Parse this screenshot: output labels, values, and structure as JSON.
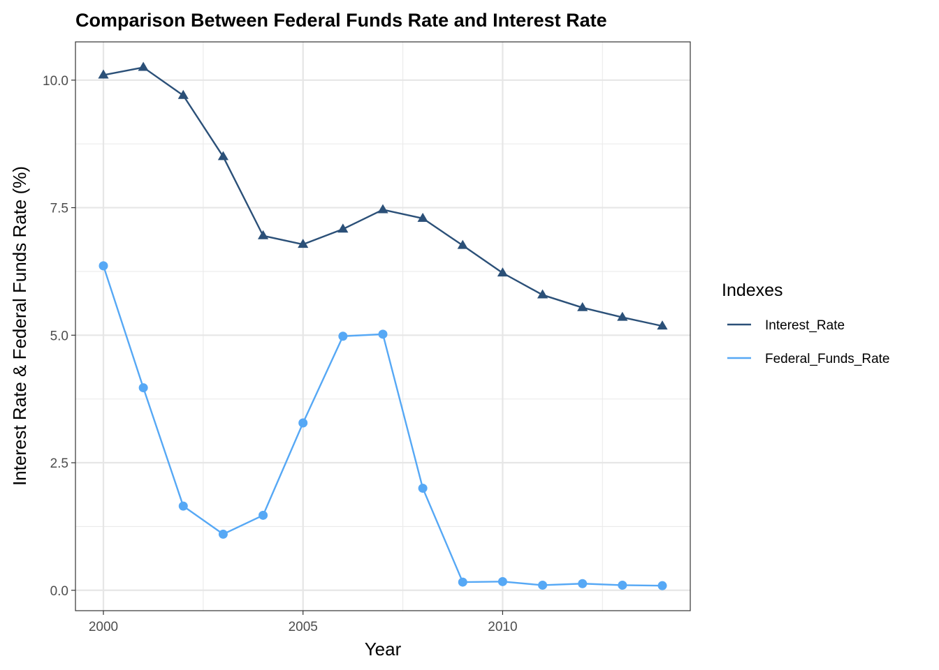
{
  "chart_data": {
    "type": "line",
    "title": "Comparison Between Federal Funds Rate and Interest Rate",
    "xlabel": "Year",
    "ylabel": "Interest Rate & Federal Funds Rate (%)",
    "x": [
      2000,
      2001,
      2002,
      2003,
      2004,
      2005,
      2006,
      2007,
      2008,
      2009,
      2010,
      2011,
      2012,
      2013,
      2014
    ],
    "xlim": [
      1999.3,
      2014.7
    ],
    "ylim": [
      -0.4,
      10.75
    ],
    "x_ticks": [
      2000,
      2005,
      2010
    ],
    "x_tick_labels": [
      "2000",
      "2005",
      "2010"
    ],
    "y_ticks": [
      0,
      2.5,
      5,
      7.5,
      10
    ],
    "y_tick_labels": [
      "0.0",
      "2.5",
      "5.0",
      "7.5",
      "10.0"
    ],
    "grid": true,
    "legend": {
      "title": "Indexes",
      "position": "right"
    },
    "series": [
      {
        "name": "Interest_Rate",
        "color": "#2b5078",
        "marker": "triangle",
        "values": [
          10.1,
          10.25,
          9.7,
          8.5,
          6.95,
          6.78,
          7.08,
          7.46,
          7.29,
          6.76,
          6.22,
          5.79,
          5.54,
          5.35,
          5.18
        ]
      },
      {
        "name": "Federal_Funds_Rate",
        "color": "#56a8f5",
        "marker": "circle",
        "values": [
          6.36,
          3.97,
          1.65,
          1.1,
          1.47,
          3.28,
          4.98,
          5.02,
          2.0,
          0.16,
          0.17,
          0.1,
          0.13,
          0.1,
          0.09
        ]
      }
    ]
  }
}
